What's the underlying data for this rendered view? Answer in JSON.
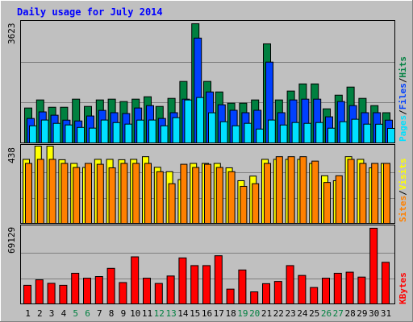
{
  "title": "Daily usage for July 2014",
  "colors": {
    "background": "#c0c0c0",
    "hits": "#008040",
    "files": "#0040ff",
    "pages": "#00e0ff",
    "visits": "#ffff00",
    "sites": "#ff8000",
    "kbytes": "#ff0000",
    "title": "#0000ff",
    "weekend_label": "#008040",
    "weekday_label": "#000000"
  },
  "chart_data": [
    {
      "type": "bar",
      "panel": "hits-files-pages",
      "y_max_label": "3623",
      "ylim": [
        0,
        3623
      ],
      "legend": [
        {
          "label": "Pages",
          "color": "#00e0ff"
        },
        {
          "label": "/",
          "color": "#000000"
        },
        {
          "label": "Files",
          "color": "#0040ff"
        },
        {
          "label": "/",
          "color": "#000000"
        },
        {
          "label": "Hits",
          "color": "#008040"
        }
      ],
      "categories": [
        "1",
        "2",
        "3",
        "4",
        "5",
        "6",
        "7",
        "8",
        "9",
        "10",
        "11",
        "12",
        "13",
        "14",
        "15",
        "16",
        "17",
        "18",
        "19",
        "20",
        "21",
        "22",
        "23",
        "24",
        "25",
        "26",
        "27",
        "28",
        "29",
        "30",
        "31"
      ],
      "series": [
        {
          "name": "Hits",
          "values": [
            1061,
            1306,
            1084,
            1084,
            1330,
            1109,
            1306,
            1330,
            1257,
            1330,
            1403,
            1109,
            1354,
            1868,
            3623,
            1869,
            1549,
            1208,
            1208,
            1306,
            3012,
            1306,
            1576,
            1794,
            1794,
            1036,
            1451,
            1697,
            1354,
            1134,
            918
          ]
        },
        {
          "name": "Files",
          "values": [
            743,
            942,
            842,
            692,
            667,
            818,
            988,
            918,
            893,
            1061,
            1134,
            744,
            918,
            1330,
            3187,
            1549,
            1159,
            992,
            918,
            992,
            2456,
            918,
            1306,
            1330,
            1330,
            793,
            1257,
            1134,
            918,
            918,
            692
          ]
        },
        {
          "name": "Pages",
          "values": [
            520,
            695,
            594,
            546,
            470,
            449,
            695,
            618,
            571,
            693,
            695,
            520,
            767,
            1305,
            1380,
            916,
            644,
            520,
            595,
            421,
            695,
            544,
            620,
            594,
            619,
            447,
            644,
            719,
            570,
            568,
            441
          ]
        }
      ],
      "grid": true
    },
    {
      "type": "bar",
      "panel": "visits-sites",
      "y_max_label": "438",
      "ylim": [
        0,
        438
      ],
      "legend": [
        {
          "label": "Sites",
          "color": "#ff8000"
        },
        {
          "label": "/",
          "color": "#000000"
        },
        {
          "label": "Visits",
          "color": "#ffff00"
        }
      ],
      "categories": [
        "1",
        "2",
        "3",
        "4",
        "5",
        "6",
        "7",
        "8",
        "9",
        "10",
        "11",
        "12",
        "13",
        "14",
        "15",
        "16",
        "17",
        "18",
        "19",
        "20",
        "21",
        "22",
        "23",
        "24",
        "25",
        "26",
        "27",
        "28",
        "29",
        "30",
        "31"
      ],
      "series": [
        {
          "name": "Visits",
          "values": [
            363,
            438,
            438,
            361,
            340,
            317,
            363,
            363,
            361,
            363,
            378,
            318,
            293,
            248,
            340,
            340,
            340,
            315,
            242,
            268,
            363,
            363,
            363,
            363,
            340,
            270,
            242,
            378,
            363,
            315,
            340
          ]
        },
        {
          "name": "Sites",
          "values": [
            340,
            363,
            363,
            340,
            317,
            340,
            335,
            315,
            340,
            340,
            340,
            293,
            225,
            335,
            317,
            335,
            317,
            293,
            210,
            225,
            340,
            378,
            378,
            378,
            353,
            232,
            270,
            363,
            340,
            340,
            340
          ]
        }
      ],
      "grid": true
    },
    {
      "type": "bar",
      "panel": "kbytes",
      "y_max_label": "69129",
      "ylim": [
        0,
        69129
      ],
      "legend": [
        {
          "label": "KBytes",
          "color": "#ff0000"
        }
      ],
      "categories": [
        "1",
        "2",
        "3",
        "4",
        "5",
        "6",
        "7",
        "8",
        "9",
        "10",
        "11",
        "12",
        "13",
        "14",
        "15",
        "16",
        "17",
        "18",
        "19",
        "20",
        "21",
        "22",
        "23",
        "24",
        "25",
        "26",
        "27",
        "28",
        "29",
        "30",
        "31"
      ],
      "series": [
        {
          "name": "KBytes",
          "values": [
            17000,
            22000,
            18800,
            17000,
            28000,
            23500,
            25000,
            32500,
            19500,
            43000,
            23500,
            18700,
            25500,
            42000,
            35000,
            35000,
            44000,
            13500,
            31000,
            11000,
            18500,
            20500,
            35000,
            26000,
            15000,
            23500,
            28000,
            29000,
            24500,
            69129,
            38000
          ]
        }
      ],
      "grid": true
    }
  ],
  "weekend_days": [
    "5",
    "6",
    "12",
    "13",
    "19",
    "20",
    "26",
    "27"
  ]
}
